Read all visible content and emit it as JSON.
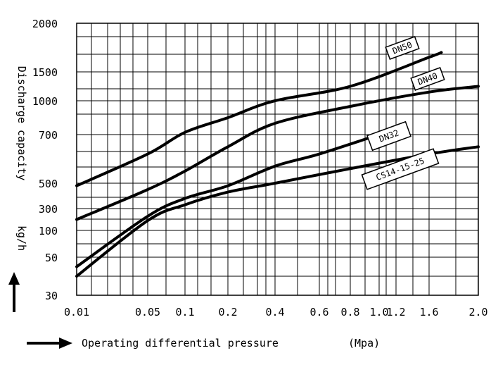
{
  "chart_data": {
    "type": "line",
    "title": "",
    "ylabel": "Discharge capacity",
    "yunit": "kg/h",
    "xlabel": "Operating differential pressure",
    "xunit": "(Mpa)",
    "x_ticks": [
      "0.01",
      "0.05",
      "0.1",
      "0.2",
      "0.4",
      "0.6",
      "0.8",
      "1.0",
      "1.2",
      "1.6",
      "2.0"
    ],
    "y_ticks": [
      "30",
      "50",
      "100",
      "300",
      "500",
      "700",
      "1000",
      "1500",
      "2000"
    ],
    "xlim": [
      0.01,
      2.0
    ],
    "ylim": [
      30,
      2000
    ],
    "grid": true,
    "series": [
      {
        "name": "DN50",
        "x": [
          0.01,
          0.05,
          0.1,
          0.2,
          0.4,
          0.8,
          1.6,
          1.7
        ],
        "y": [
          480,
          620,
          720,
          850,
          1000,
          1250,
          1650,
          1700
        ]
      },
      {
        "name": "DN40",
        "x": [
          0.01,
          0.05,
          0.1,
          0.2,
          0.4,
          0.8,
          1.6,
          2.0
        ],
        "y": [
          200,
          450,
          550,
          650,
          800,
          950,
          1150,
          1250
        ]
      },
      {
        "name": "DN32",
        "x": [
          0.01,
          0.05,
          0.1,
          0.2,
          0.4,
          0.6,
          1.0
        ],
        "y": [
          45,
          230,
          380,
          480,
          570,
          620,
          700
        ]
      },
      {
        "name": "CS14-15-25",
        "x": [
          0.01,
          0.05,
          0.1,
          0.2,
          0.4,
          0.8,
          1.6,
          2.0
        ],
        "y": [
          40,
          190,
          330,
          430,
          500,
          560,
          620,
          650
        ]
      }
    ]
  }
}
